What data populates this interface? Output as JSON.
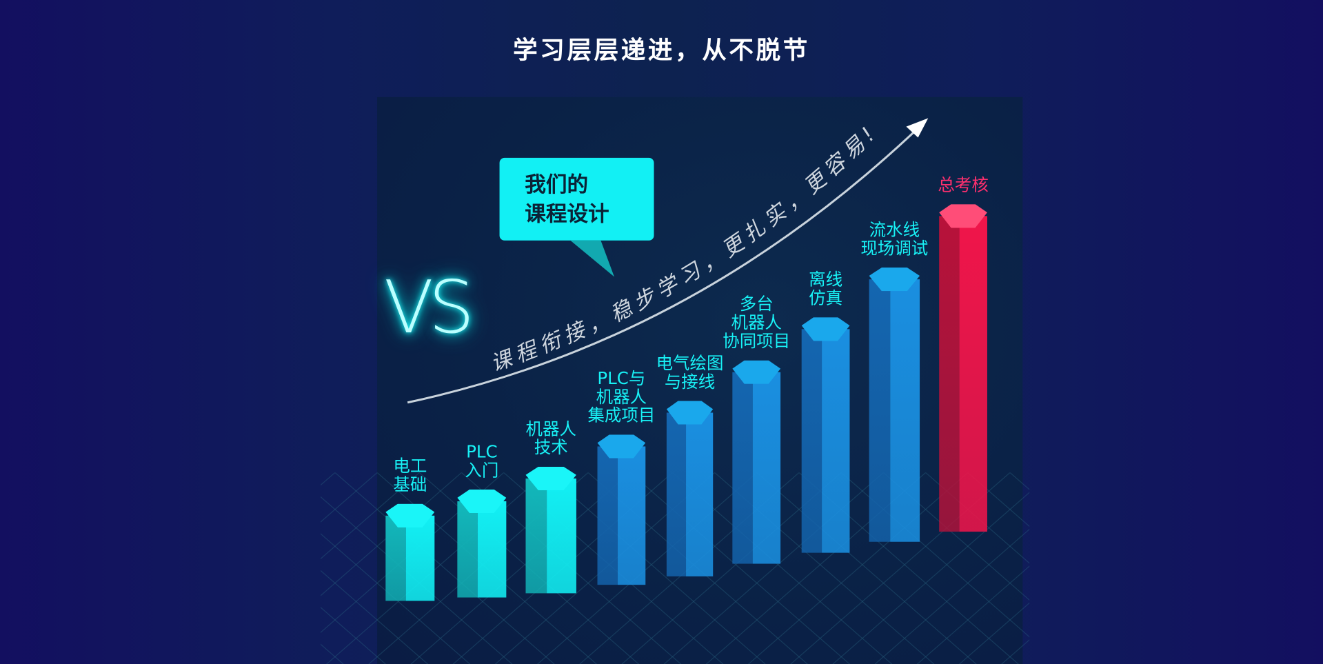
{
  "title": "学习层层递进，从不脱节",
  "bubble": {
    "line1": "我们的",
    "line2": "课程设计"
  },
  "vs_text": "VS",
  "curve_text": "课程衔接，稳步学习，更扎实，更容易!",
  "colors": {
    "cyan": "#12f0f4",
    "blue": "#1a8fe0",
    "red": "#f0154a",
    "label_cyan": "#18f2f6",
    "label_red": "#ff2f6e"
  },
  "stages": [
    {
      "lines": [
        "电工",
        "基础"
      ],
      "level": 1,
      "color": "cyan"
    },
    {
      "lines": [
        "PLC",
        "入门"
      ],
      "level": 2,
      "color": "cyan"
    },
    {
      "lines": [
        "机器人",
        "技术"
      ],
      "level": 3,
      "color": "cyan"
    },
    {
      "lines": [
        "PLC与",
        "机器人",
        "集成项目"
      ],
      "level": 4,
      "color": "blue"
    },
    {
      "lines": [
        "电气绘图",
        "与接线"
      ],
      "level": 5,
      "color": "blue"
    },
    {
      "lines": [
        "多台",
        "机器人",
        "协同项目"
      ],
      "level": 6,
      "color": "blue"
    },
    {
      "lines": [
        "离线",
        "仿真"
      ],
      "level": 7,
      "color": "blue"
    },
    {
      "lines": [
        "流水线",
        "现场调试"
      ],
      "level": 8,
      "color": "blue"
    },
    {
      "lines": [
        "总考核"
      ],
      "level": 9,
      "color": "red"
    }
  ]
}
